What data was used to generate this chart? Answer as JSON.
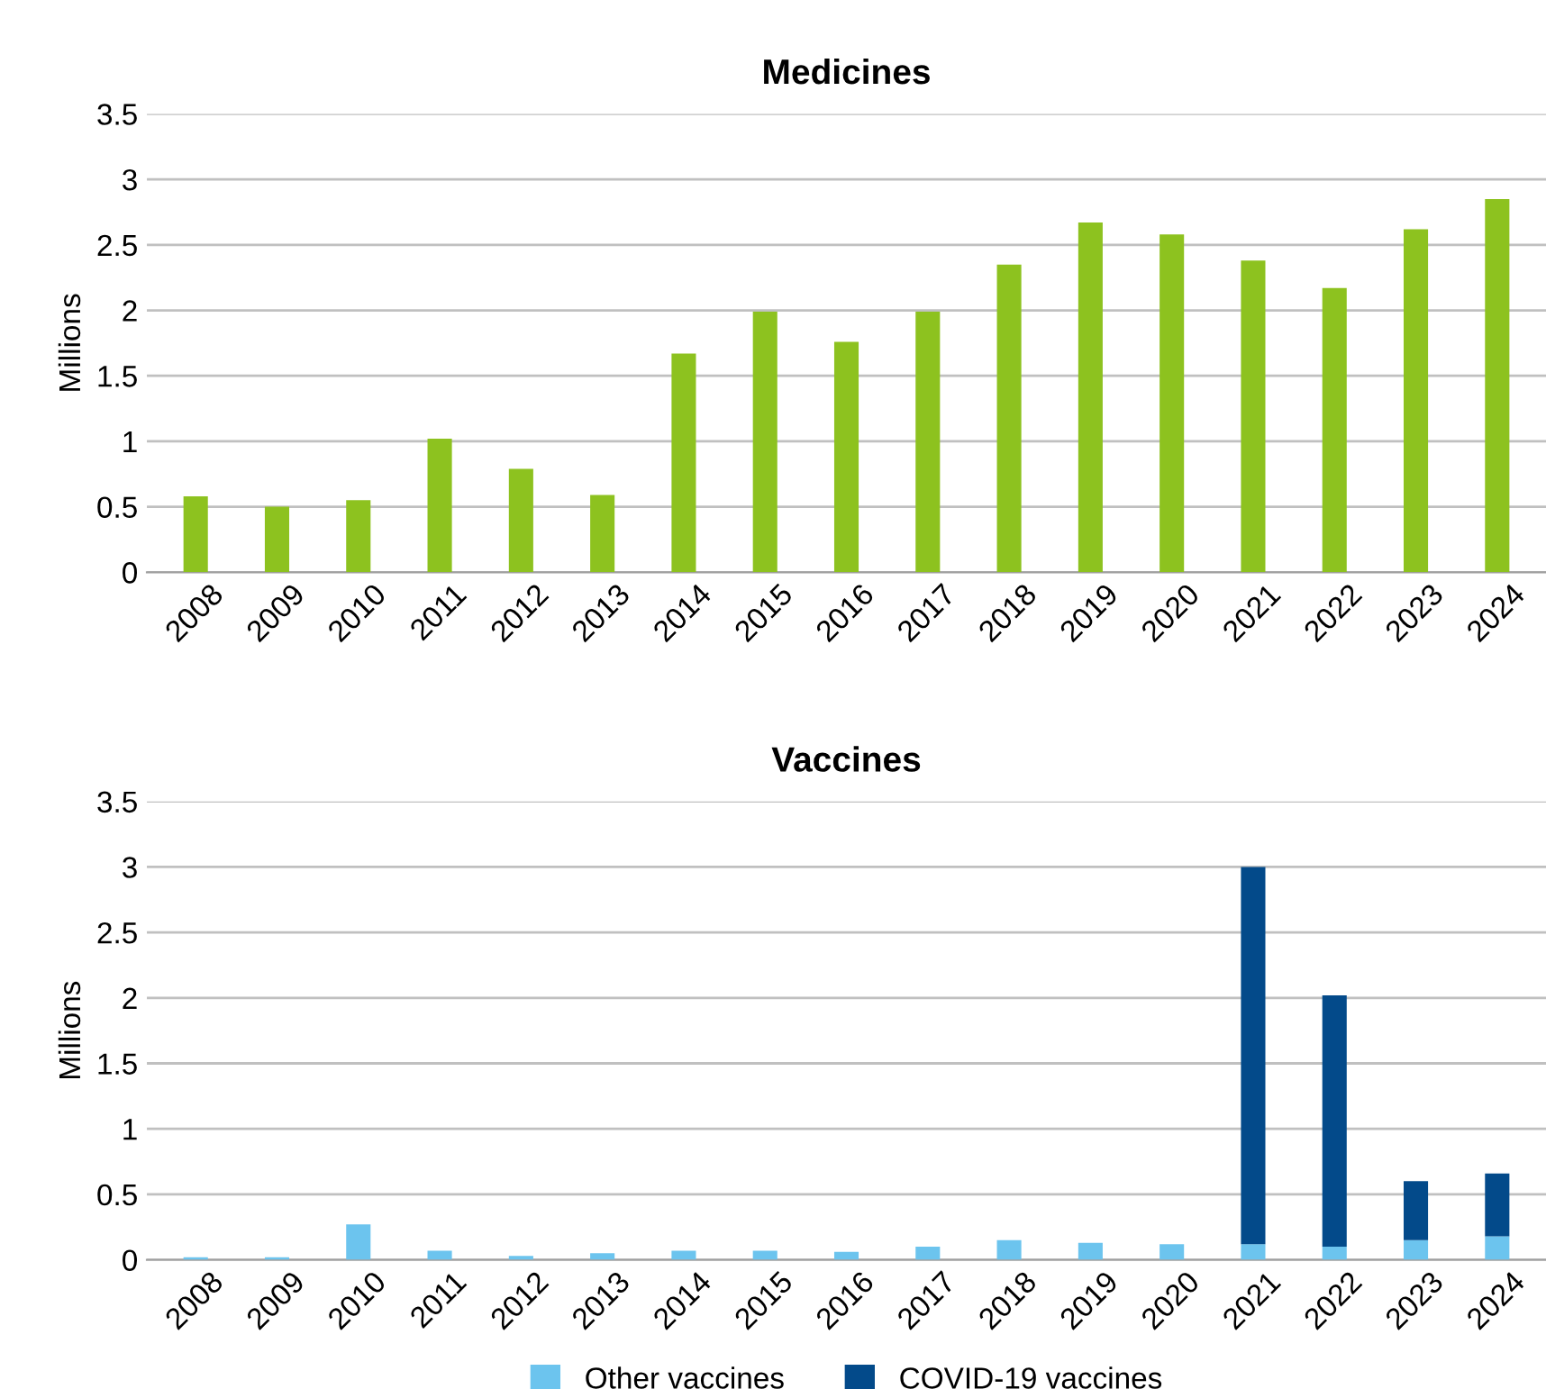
{
  "chart_data": [
    {
      "type": "bar",
      "title": "Medicines",
      "ylabel": "Millions",
      "categories": [
        "2008",
        "2009",
        "2010",
        "2011",
        "2012",
        "2013",
        "2014",
        "2015",
        "2016",
        "2017",
        "2018",
        "2019",
        "2020",
        "2021",
        "2022",
        "2023",
        "2024"
      ],
      "series": [
        {
          "color": "#8dc21f",
          "values": [
            0.58,
            0.5,
            0.55,
            1.02,
            0.79,
            0.59,
            1.67,
            1.99,
            1.76,
            1.99,
            2.35,
            2.67,
            2.58,
            2.38,
            2.17,
            2.62,
            2.85
          ]
        }
      ],
      "ylim": [
        0,
        3.5
      ],
      "yticks": [
        0,
        0.5,
        1,
        1.5,
        2,
        2.5,
        3,
        3.5
      ],
      "grid": "y",
      "legend": false
    },
    {
      "type": "bar",
      "title": "Vaccines",
      "ylabel": "Millions",
      "stacked": true,
      "categories": [
        "2008",
        "2009",
        "2010",
        "2011",
        "2012",
        "2013",
        "2014",
        "2015",
        "2016",
        "2017",
        "2018",
        "2019",
        "2020",
        "2021",
        "2022",
        "2023",
        "2024"
      ],
      "series": [
        {
          "name": "Other vaccines",
          "color": "#6cc4ee",
          "values": [
            0.02,
            0.02,
            0.27,
            0.07,
            0.03,
            0.05,
            0.07,
            0.07,
            0.06,
            0.1,
            0.15,
            0.13,
            0.12,
            0.12,
            0.1,
            0.15,
            0.18
          ]
        },
        {
          "name": "COVID-19 vaccines",
          "color": "#034a8a",
          "values": [
            null,
            null,
            null,
            null,
            null,
            null,
            null,
            null,
            null,
            null,
            null,
            null,
            null,
            2.88,
            1.92,
            0.45,
            0.48
          ]
        }
      ],
      "ylim": [
        0,
        3.5
      ],
      "yticks": [
        0,
        0.5,
        1,
        1.5,
        2,
        2.5,
        3,
        3.5
      ],
      "grid": "y",
      "legend": "bottom"
    }
  ]
}
